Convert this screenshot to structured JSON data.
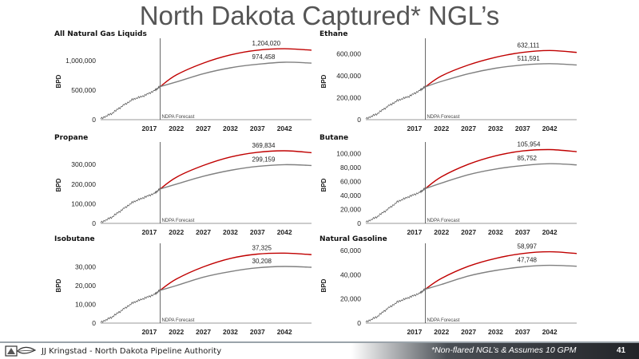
{
  "slide": {
    "title": "North Dakota Captured* NGL’s",
    "footer_author": "JJ Kringstad - North Dakota Pipeline Authority",
    "footer_note": "*Non-flared NGL’s & Assumes 10 GPM",
    "page_number": "41",
    "logo_icon": "ndpa-logo-icon"
  },
  "colors": {
    "forecast_high": "#c00000",
    "forecast_low": "#808080",
    "history": "#505050",
    "axis": "#333333"
  },
  "chart_data": [
    {
      "type": "line",
      "title": "All Natural Gas Liquids",
      "ylabel": "BPD",
      "x_range": [
        2008,
        2047
      ],
      "ylim": [
        0,
        1300000
      ],
      "y_ticks": [
        0,
        500000,
        1000000
      ],
      "y_tick_labels": [
        "0",
        "500,000",
        "1,000,000"
      ],
      "x_ticks": [
        2017,
        2022,
        2027,
        2032,
        2037,
        2042
      ],
      "x_tick_labels": [
        "2017",
        "2022",
        "2027",
        "2032",
        "2037",
        "2042"
      ],
      "forecast_start": 2019,
      "forecast_label": "NDPA Forecast",
      "history": {
        "x": [
          2008,
          2010,
          2012,
          2014,
          2016,
          2018,
          2019
        ],
        "y": [
          20000,
          100000,
          230000,
          350000,
          400000,
          500000,
          560000
        ]
      },
      "series": [
        {
          "x": [
            2019,
            2022,
            2027,
            2032,
            2037,
            2042,
            2047
          ],
          "y": [
            560000,
            760000,
            960000,
            1100000,
            1180000,
            1204020,
            1180000
          ]
        },
        {
          "x": [
            2019,
            2022,
            2027,
            2032,
            2037,
            2042,
            2047
          ],
          "y": [
            560000,
            640000,
            780000,
            880000,
            940000,
            974458,
            960000
          ]
        }
      ],
      "annotations": [
        {
          "text": "1,204,020",
          "x": 2036,
          "y": 1204020
        },
        {
          "text": "974,458",
          "x": 2036,
          "y": 974458
        }
      ]
    },
    {
      "type": "line",
      "title": "Ethane",
      "ylabel": "BPD",
      "x_range": [
        2008,
        2047
      ],
      "ylim": [
        0,
        700000
      ],
      "y_ticks": [
        0,
        200000,
        400000,
        600000
      ],
      "y_tick_labels": [
        "0",
        "200,000",
        "400,000",
        "600,000"
      ],
      "x_ticks": [
        2017,
        2022,
        2027,
        2032,
        2037,
        2042
      ],
      "x_tick_labels": [
        "2017",
        "2022",
        "2027",
        "2032",
        "2037",
        "2042"
      ],
      "forecast_start": 2019,
      "forecast_label": "NDPA Forecast",
      "history": {
        "x": [
          2008,
          2010,
          2012,
          2014,
          2016,
          2018,
          2019
        ],
        "y": [
          10000,
          50000,
          120000,
          180000,
          210000,
          270000,
          300000
        ]
      },
      "series": [
        {
          "x": [
            2019,
            2022,
            2027,
            2032,
            2037,
            2042,
            2047
          ],
          "y": [
            300000,
            400000,
            500000,
            570000,
            615000,
            632111,
            615000
          ]
        },
        {
          "x": [
            2019,
            2022,
            2027,
            2032,
            2037,
            2042,
            2047
          ],
          "y": [
            300000,
            350000,
            420000,
            470000,
            500000,
            511591,
            500000
          ]
        }
      ],
      "annotations": [
        {
          "text": "632,111",
          "x": 2036,
          "y": 632111
        },
        {
          "text": "511,591",
          "x": 2036,
          "y": 511591
        }
      ]
    },
    {
      "type": "line",
      "title": "Propane",
      "ylabel": "BPD",
      "x_range": [
        2008,
        2047
      ],
      "ylim": [
        0,
        390000
      ],
      "y_ticks": [
        0,
        100000,
        200000,
        300000
      ],
      "y_tick_labels": [
        "0",
        "100,000",
        "200,000",
        "300,000"
      ],
      "x_ticks": [
        2017,
        2022,
        2027,
        2032,
        2037,
        2042
      ],
      "x_tick_labels": [
        "2017",
        "2022",
        "2027",
        "2032",
        "2037",
        "2042"
      ],
      "forecast_start": 2019,
      "forecast_label": "NDPA Forecast",
      "history": {
        "x": [
          2008,
          2010,
          2012,
          2014,
          2016,
          2018,
          2019
        ],
        "y": [
          5000,
          30000,
          70000,
          110000,
          130000,
          155000,
          175000
        ]
      },
      "series": [
        {
          "x": [
            2019,
            2022,
            2027,
            2032,
            2037,
            2042,
            2047
          ],
          "y": [
            175000,
            235000,
            295000,
            338000,
            362000,
            369834,
            360000
          ]
        },
        {
          "x": [
            2019,
            2022,
            2027,
            2032,
            2037,
            2042,
            2047
          ],
          "y": [
            175000,
            200000,
            240000,
            270000,
            290000,
            299159,
            295000
          ]
        }
      ],
      "annotations": [
        {
          "text": "369,834",
          "x": 2036,
          "y": 369834
        },
        {
          "text": "299,159",
          "x": 2036,
          "y": 299159
        }
      ]
    },
    {
      "type": "line",
      "title": "Butane",
      "ylabel": "BPD",
      "x_range": [
        2008,
        2047
      ],
      "ylim": [
        0,
        110000
      ],
      "y_ticks": [
        0,
        20000,
        40000,
        60000,
        80000,
        100000
      ],
      "y_tick_labels": [
        "0",
        "20,000",
        "40,000",
        "60,000",
        "80,000",
        "100,000"
      ],
      "x_ticks": [
        2017,
        2022,
        2027,
        2032,
        2037,
        2042
      ],
      "x_tick_labels": [
        "2017",
        "2022",
        "2027",
        "2032",
        "2037",
        "2042"
      ],
      "forecast_start": 2019,
      "forecast_label": "NDPA Forecast",
      "history": {
        "x": [
          2008,
          2010,
          2012,
          2014,
          2016,
          2018,
          2019
        ],
        "y": [
          2000,
          9000,
          20000,
          32000,
          38000,
          45000,
          50000
        ]
      },
      "series": [
        {
          "x": [
            2019,
            2022,
            2027,
            2032,
            2037,
            2042,
            2047
          ],
          "y": [
            50000,
            67000,
            85000,
            97000,
            104000,
            105954,
            103000
          ]
        },
        {
          "x": [
            2019,
            2022,
            2027,
            2032,
            2037,
            2042,
            2047
          ],
          "y": [
            50000,
            58000,
            70000,
            78000,
            83000,
            85752,
            84000
          ]
        }
      ],
      "annotations": [
        {
          "text": "105,954",
          "x": 2036,
          "y": 105954
        },
        {
          "text": "85,752",
          "x": 2036,
          "y": 85752
        }
      ]
    },
    {
      "type": "line",
      "title": "Isobutane",
      "ylabel": "BPD",
      "x_range": [
        2008,
        2047
      ],
      "ylim": [
        0,
        40000
      ],
      "y_ticks": [
        0,
        10000,
        20000,
        30000
      ],
      "y_tick_labels": [
        "0",
        "10,000",
        "20,000",
        "30,000"
      ],
      "x_ticks": [
        2017,
        2022,
        2027,
        2032,
        2037,
        2042
      ],
      "x_tick_labels": [
        "2017",
        "2022",
        "2027",
        "2032",
        "2037",
        "2042"
      ],
      "forecast_start": 2019,
      "forecast_label": "NDPA Forecast",
      "history": {
        "x": [
          2008,
          2010,
          2012,
          2014,
          2016,
          2018,
          2019
        ],
        "y": [
          500,
          3000,
          7000,
          11000,
          13000,
          15500,
          17500
        ]
      },
      "series": [
        {
          "x": [
            2019,
            2022,
            2027,
            2032,
            2037,
            2042,
            2047
          ],
          "y": [
            17500,
            23500,
            30000,
            34500,
            36800,
            37325,
            36500
          ]
        },
        {
          "x": [
            2019,
            2022,
            2027,
            2032,
            2037,
            2042,
            2047
          ],
          "y": [
            17500,
            20000,
            24500,
            27500,
            29500,
            30208,
            29800
          ]
        }
      ],
      "annotations": [
        {
          "text": "37,325",
          "x": 2036,
          "y": 37325
        },
        {
          "text": "30,208",
          "x": 2036,
          "y": 30208
        }
      ]
    },
    {
      "type": "line",
      "title": "Natural Gasoline",
      "ylabel": "BPD",
      "x_range": [
        2008,
        2047
      ],
      "ylim": [
        0,
        62000
      ],
      "y_ticks": [
        0,
        20000,
        40000,
        60000
      ],
      "y_tick_labels": [
        "0",
        "20,000",
        "40,000",
        "60,000"
      ],
      "x_ticks": [
        2017,
        2022,
        2027,
        2032,
        2037,
        2042
      ],
      "x_tick_labels": [
        "2017",
        "2022",
        "2027",
        "2032",
        "2037",
        "2042"
      ],
      "forecast_start": 2019,
      "forecast_label": "NDPA Forecast",
      "history": {
        "x": [
          2008,
          2010,
          2012,
          2014,
          2016,
          2018,
          2019
        ],
        "y": [
          1000,
          5000,
          12000,
          18000,
          21000,
          25000,
          28000
        ]
      },
      "series": [
        {
          "x": [
            2019,
            2022,
            2027,
            2032,
            2037,
            2042,
            2047
          ],
          "y": [
            28000,
            37000,
            47000,
            53500,
            57500,
            58997,
            57500
          ]
        },
        {
          "x": [
            2019,
            2022,
            2027,
            2032,
            2037,
            2042,
            2047
          ],
          "y": [
            28000,
            32000,
            39000,
            43500,
            46500,
            47748,
            47000
          ]
        }
      ],
      "annotations": [
        {
          "text": "58,997",
          "x": 2036,
          "y": 58997
        },
        {
          "text": "47,748",
          "x": 2036,
          "y": 47748
        }
      ]
    }
  ]
}
